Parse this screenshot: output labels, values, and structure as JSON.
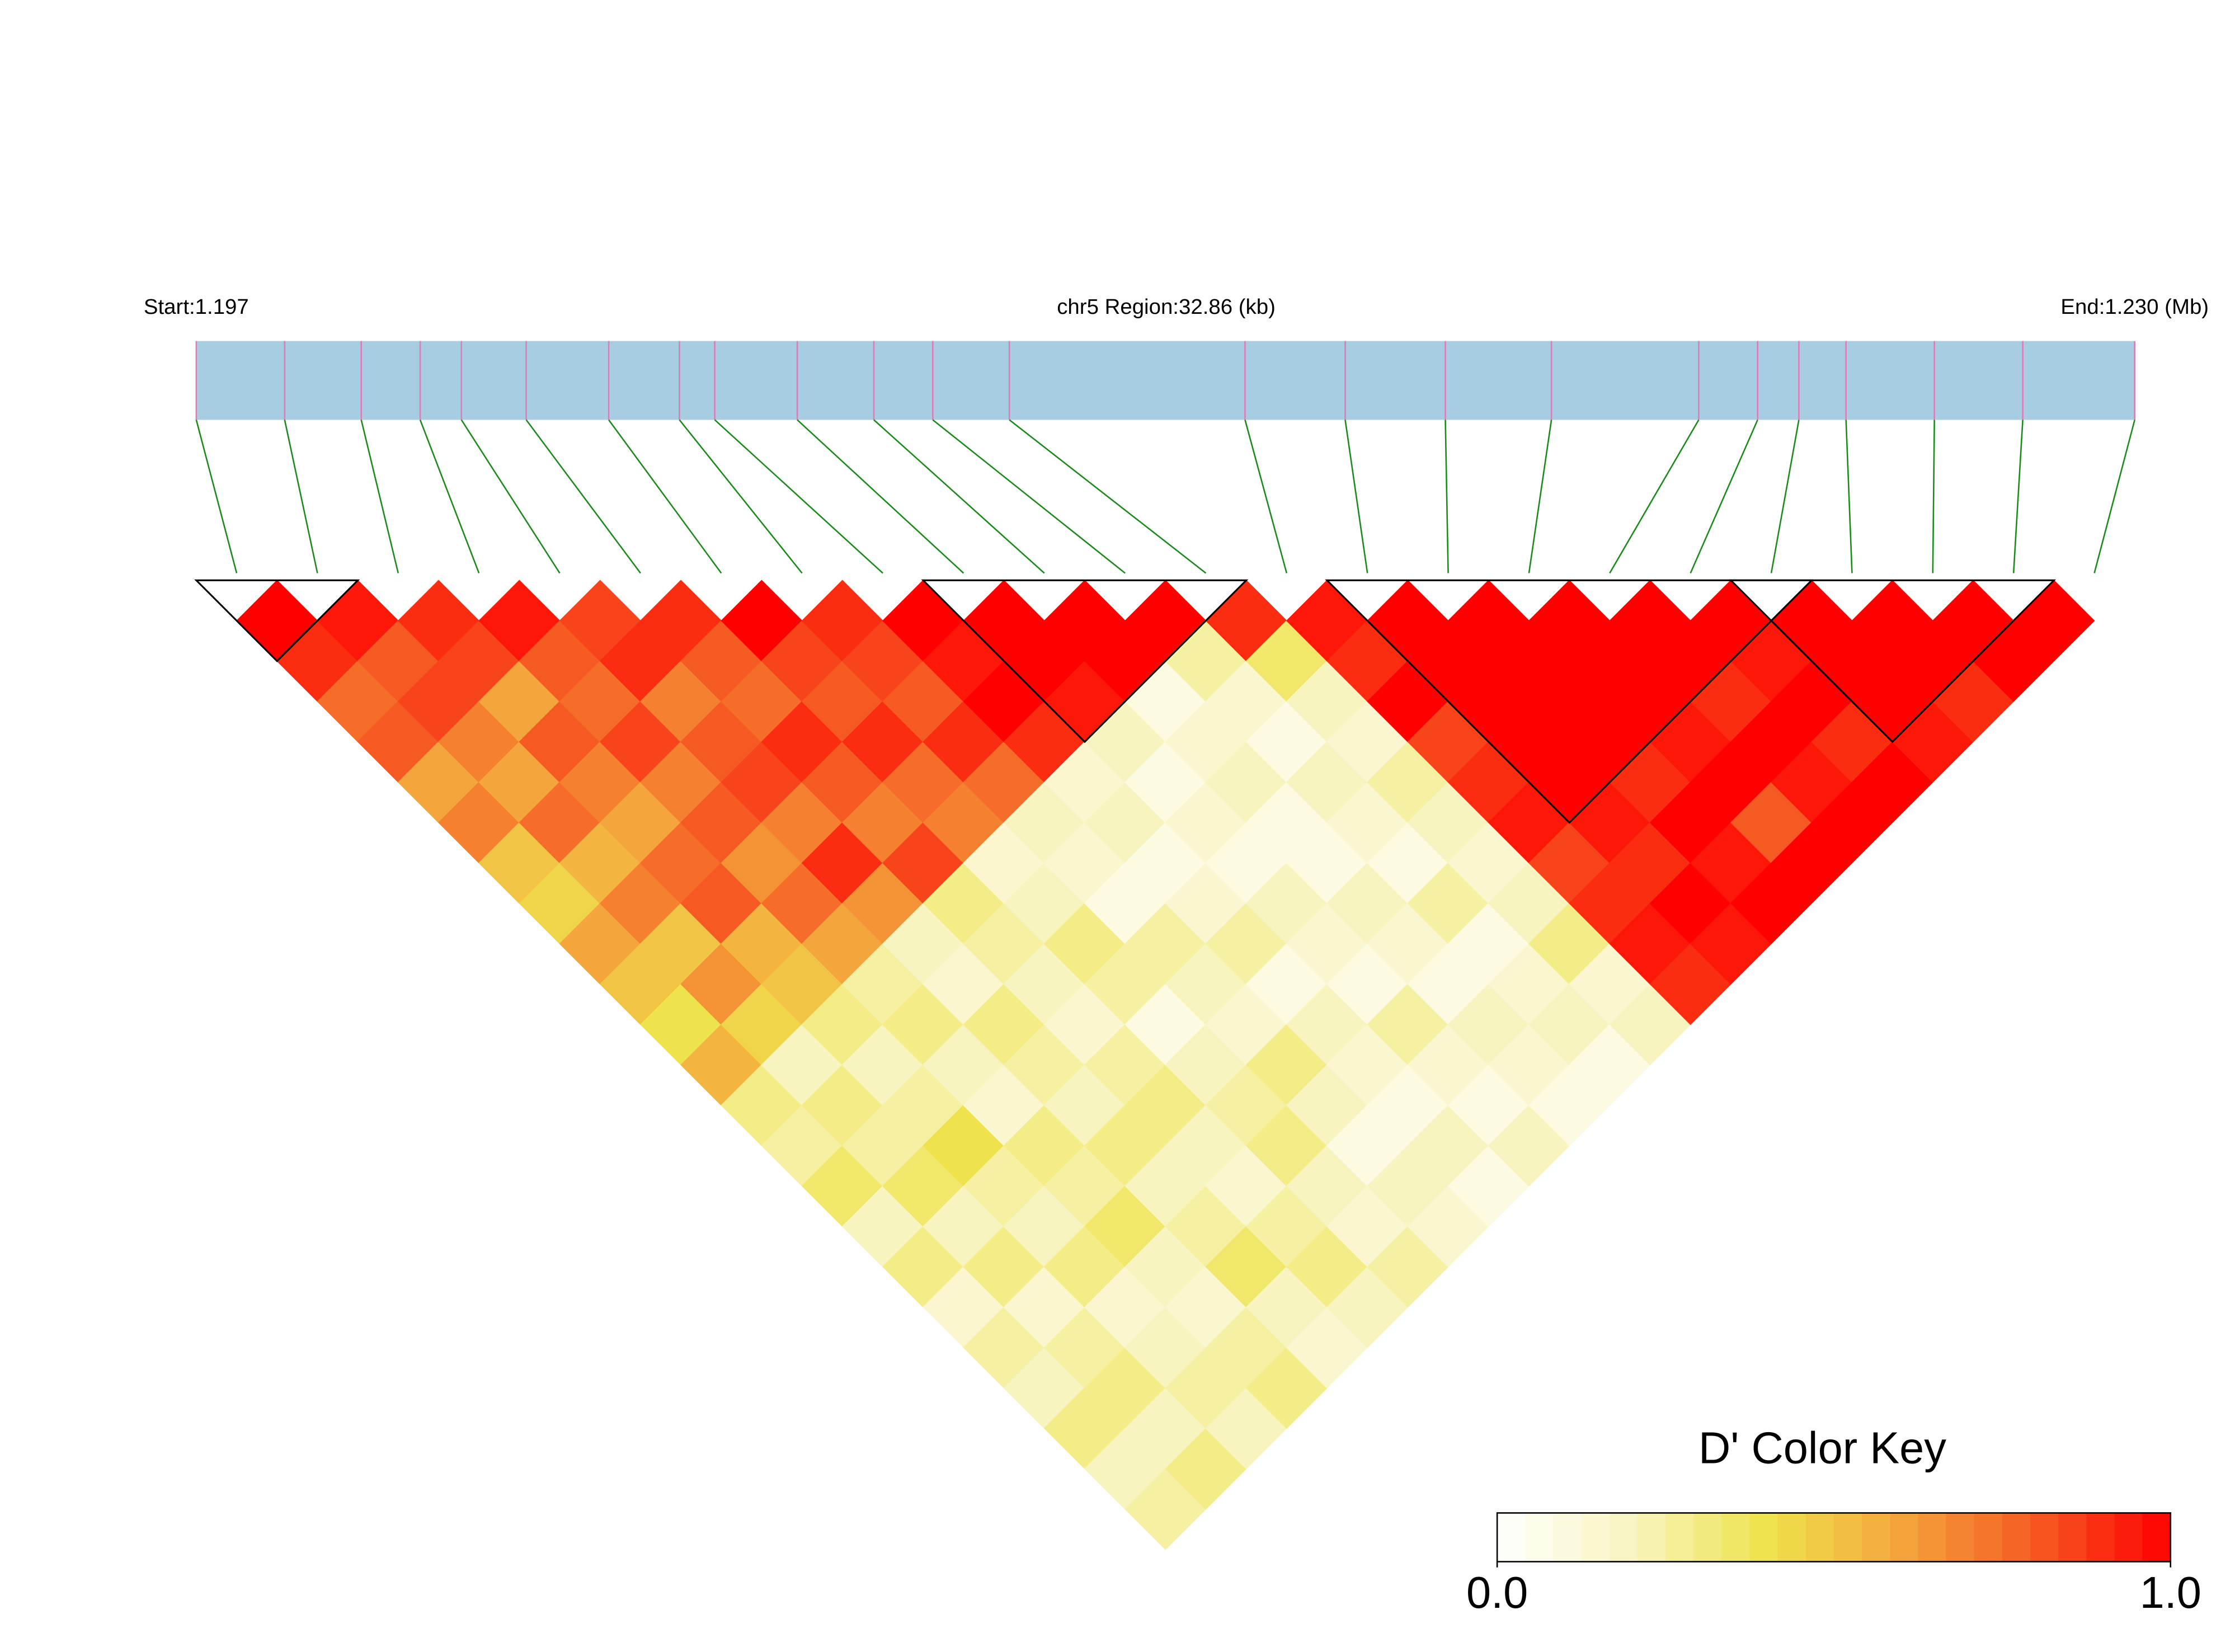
{
  "chart_data": {
    "type": "ld_heatmap",
    "start_label": "Start:1.197",
    "title": "chr5 Region:32.86 (kb)",
    "end_label": "End:1.230 (Mb)",
    "key_title": "D' Color Key",
    "key_ticks": [
      {
        "value": 0,
        "label": "0.0"
      },
      {
        "value": 1,
        "label": "1.0"
      }
    ],
    "xlim": [
      1.197,
      1.2299
    ],
    "positions": [
      1.197,
      1.1985,
      1.1998,
      1.2008,
      1.2015,
      1.2026,
      1.204,
      1.2052,
      1.2058,
      1.2072,
      1.2085,
      1.2095,
      1.2108,
      1.2148,
      1.2165,
      1.2182,
      1.22,
      1.2225,
      1.2235,
      1.2242,
      1.225,
      1.2265,
      1.228,
      1.2299
    ],
    "bar_color": "#a6cde2",
    "snp_color": "#e07bb5",
    "connector_color": "#1a8a1a",
    "colorscale": [
      "#ffffff",
      "#f8f4c0",
      "#efe34d",
      "#f4a53c",
      "#f55a22",
      "#ff0000"
    ],
    "blocks": [
      [
        0,
        1
      ],
      [
        9,
        12
      ],
      [
        14,
        19
      ],
      [
        19,
        22
      ]
    ],
    "dprime": [
      [
        1.0,
        0.9,
        0.75,
        0.8,
        0.6,
        0.7,
        0.5,
        0.45,
        0.6,
        0.5,
        0.4,
        0.55,
        0.3,
        0.25,
        0.35,
        0.2,
        0.3,
        0.15,
        0.25,
        0.2,
        0.3,
        0.2,
        0.25
      ],
      [
        0.95,
        0.8,
        0.85,
        0.7,
        0.6,
        0.75,
        0.55,
        0.7,
        0.5,
        0.65,
        0.45,
        0.2,
        0.3,
        0.25,
        0.35,
        0.2,
        0.3,
        0.15,
        0.25,
        0.3,
        0.2,
        0.3
      ],
      [
        0.9,
        0.85,
        0.6,
        0.8,
        0.7,
        0.6,
        0.75,
        0.8,
        0.55,
        0.5,
        0.3,
        0.2,
        0.25,
        0.4,
        0.25,
        0.2,
        0.3,
        0.15,
        0.2,
        0.25,
        0.2
      ],
      [
        0.95,
        0.8,
        0.75,
        0.85,
        0.7,
        0.8,
        0.65,
        0.75,
        0.6,
        0.25,
        0.3,
        0.2,
        0.15,
        0.3,
        0.25,
        0.35,
        0.2,
        0.15,
        0.25,
        0.3
      ],
      [
        0.85,
        0.9,
        0.7,
        0.8,
        0.85,
        0.7,
        0.9,
        0.65,
        0.2,
        0.15,
        0.3,
        0.25,
        0.2,
        0.3,
        0.2,
        0.25,
        0.35,
        0.2,
        0.15
      ],
      [
        0.9,
        0.8,
        0.75,
        0.9,
        0.8,
        0.7,
        0.85,
        0.3,
        0.25,
        0.2,
        0.15,
        0.25,
        0.3,
        0.2,
        0.15,
        0.25,
        0.3,
        0.2
      ],
      [
        1.0,
        0.85,
        0.8,
        0.9,
        0.75,
        0.7,
        0.15,
        0.2,
        0.3,
        0.25,
        0.1,
        0.2,
        0.25,
        0.3,
        0.2,
        0.15,
        0.25
      ],
      [
        0.9,
        0.85,
        0.8,
        0.9,
        0.75,
        0.2,
        0.15,
        0.1,
        0.25,
        0.2,
        0.15,
        0.3,
        0.2,
        0.1,
        0.2,
        0.15
      ],
      [
        1.0,
        0.95,
        1.0,
        0.9,
        0.15,
        0.2,
        0.1,
        0.15,
        0.25,
        0.1,
        0.2,
        0.15,
        0.1,
        0.2,
        0.1
      ],
      [
        1.0,
        1.0,
        0.95,
        0.2,
        0.1,
        0.15,
        0.1,
        0.2,
        0.15,
        0.1,
        0.25,
        0.15,
        0.1,
        0.2
      ],
      [
        1.0,
        1.0,
        0.1,
        0.15,
        0.2,
        0.1,
        0.1,
        0.2,
        0.15,
        0.1,
        0.2,
        0.15,
        0.1
      ],
      [
        1.0,
        0.25,
        0.15,
        0.1,
        0.2,
        0.15,
        0.1,
        0.25,
        0.1,
        0.15,
        0.2,
        0.1
      ],
      [
        0.9,
        0.35,
        0.2,
        0.15,
        0.25,
        0.2,
        0.15,
        0.2,
        0.3,
        0.15,
        0.2
      ],
      [
        0.95,
        0.9,
        1.0,
        0.85,
        0.9,
        0.95,
        0.85,
        0.9,
        0.95,
        0.9
      ],
      [
        1.0,
        1.0,
        1.0,
        1.0,
        1.0,
        0.95,
        0.9,
        1.0,
        0.95
      ],
      [
        1.0,
        1.0,
        1.0,
        1.0,
        0.9,
        1.0,
        0.95,
        1.0
      ],
      [
        1.0,
        1.0,
        1.0,
        0.95,
        1.0,
        0.8,
        1.0
      ],
      [
        1.0,
        1.0,
        0.9,
        1.0,
        0.95,
        1.0
      ],
      [
        1.0,
        0.95,
        1.0,
        0.9,
        1.0
      ],
      [
        1.0,
        1.0,
        1.0,
        0.95
      ],
      [
        1.0,
        1.0,
        0.9
      ],
      [
        1.0,
        1.0
      ],
      [
        1.0
      ]
    ]
  }
}
